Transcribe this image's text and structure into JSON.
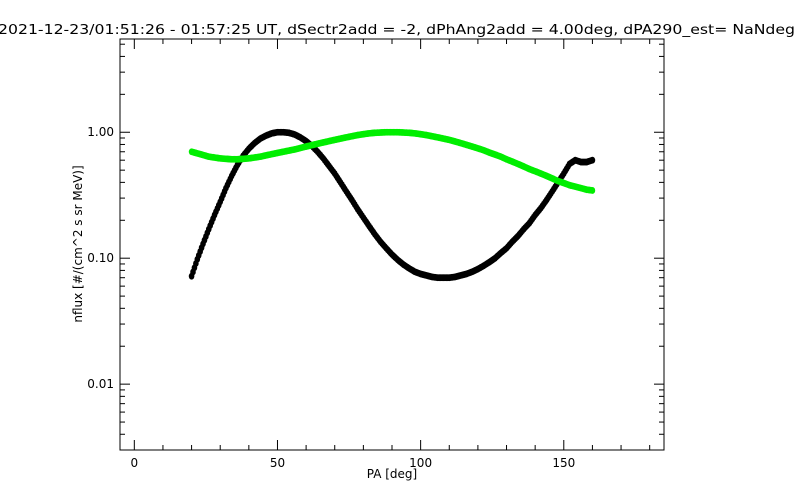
{
  "chart_data": {
    "type": "scatter",
    "title": "2021-12-23/01:51:26 - 01:57:25 UT, dSectr2add = -2, dPhAng2add = 4.00deg, dPA290_est=   NaNdeg",
    "xlabel": "PA [deg]",
    "ylabel": "nflux [#/(cm^2 s sr MeV)]",
    "xlim": [
      -5,
      185
    ],
    "ylim": [
      0.003,
      5.5
    ],
    "yscale": "log",
    "xticks": [
      0,
      50,
      100,
      150
    ],
    "xtick_labels": [
      "0",
      "50",
      "100",
      "150"
    ],
    "yticks": [
      0.01,
      0.1,
      1.0
    ],
    "ytick_labels": [
      "0.01",
      "0.10",
      "1.00"
    ],
    "grid": false,
    "series": [
      {
        "color": "#000000",
        "x": [
          20,
          22,
          24,
          26,
          28,
          30,
          32,
          34,
          36,
          38,
          40,
          42,
          44,
          46,
          48,
          50,
          52,
          54,
          56,
          58,
          60,
          62,
          64,
          66,
          68,
          70,
          72,
          74,
          76,
          78,
          80,
          82,
          84,
          86,
          88,
          90,
          92,
          94,
          96,
          98,
          100,
          102,
          104,
          106,
          108,
          110,
          112,
          114,
          116,
          118,
          120,
          122,
          124,
          126,
          128,
          130,
          132,
          134,
          136,
          138,
          140,
          142,
          144,
          146,
          148,
          150,
          152,
          154,
          156,
          158,
          160
        ],
        "y": [
          0.072,
          0.098,
          0.13,
          0.17,
          0.22,
          0.28,
          0.36,
          0.45,
          0.55,
          0.65,
          0.74,
          0.82,
          0.89,
          0.94,
          0.98,
          1.0,
          1.0,
          0.99,
          0.96,
          0.91,
          0.85,
          0.78,
          0.7,
          0.62,
          0.54,
          0.47,
          0.4,
          0.34,
          0.29,
          0.245,
          0.21,
          0.18,
          0.155,
          0.135,
          0.12,
          0.107,
          0.097,
          0.089,
          0.083,
          0.078,
          0.075,
          0.073,
          0.071,
          0.07,
          0.07,
          0.07,
          0.071,
          0.073,
          0.075,
          0.078,
          0.082,
          0.087,
          0.093,
          0.1,
          0.11,
          0.12,
          0.135,
          0.15,
          0.17,
          0.19,
          0.22,
          0.25,
          0.29,
          0.34,
          0.4,
          0.47,
          0.56,
          0.6,
          0.58,
          0.58,
          0.6
        ]
      },
      {
        "color": "#00ee00",
        "x": [
          20,
          22,
          24,
          26,
          28,
          30,
          32,
          34,
          36,
          38,
          40,
          42,
          44,
          46,
          48,
          50,
          52,
          54,
          56,
          58,
          60,
          62,
          64,
          66,
          68,
          70,
          72,
          74,
          76,
          78,
          80,
          82,
          84,
          86,
          88,
          90,
          92,
          94,
          96,
          98,
          100,
          102,
          104,
          106,
          108,
          110,
          112,
          114,
          116,
          118,
          120,
          122,
          124,
          126,
          128,
          130,
          132,
          134,
          136,
          138,
          140,
          142,
          144,
          146,
          148,
          150,
          152,
          154,
          156,
          158,
          160
        ],
        "y": [
          0.7,
          0.68,
          0.66,
          0.64,
          0.63,
          0.62,
          0.615,
          0.61,
          0.61,
          0.615,
          0.62,
          0.63,
          0.64,
          0.655,
          0.67,
          0.685,
          0.7,
          0.715,
          0.73,
          0.75,
          0.77,
          0.79,
          0.81,
          0.83,
          0.85,
          0.87,
          0.89,
          0.91,
          0.93,
          0.95,
          0.965,
          0.98,
          0.99,
          0.995,
          1.0,
          1.0,
          1.0,
          0.995,
          0.99,
          0.98,
          0.965,
          0.95,
          0.93,
          0.91,
          0.89,
          0.87,
          0.845,
          0.82,
          0.795,
          0.77,
          0.745,
          0.72,
          0.69,
          0.665,
          0.64,
          0.61,
          0.585,
          0.56,
          0.535,
          0.51,
          0.49,
          0.47,
          0.45,
          0.43,
          0.41,
          0.395,
          0.38,
          0.37,
          0.36,
          0.35,
          0.345
        ]
      }
    ]
  }
}
